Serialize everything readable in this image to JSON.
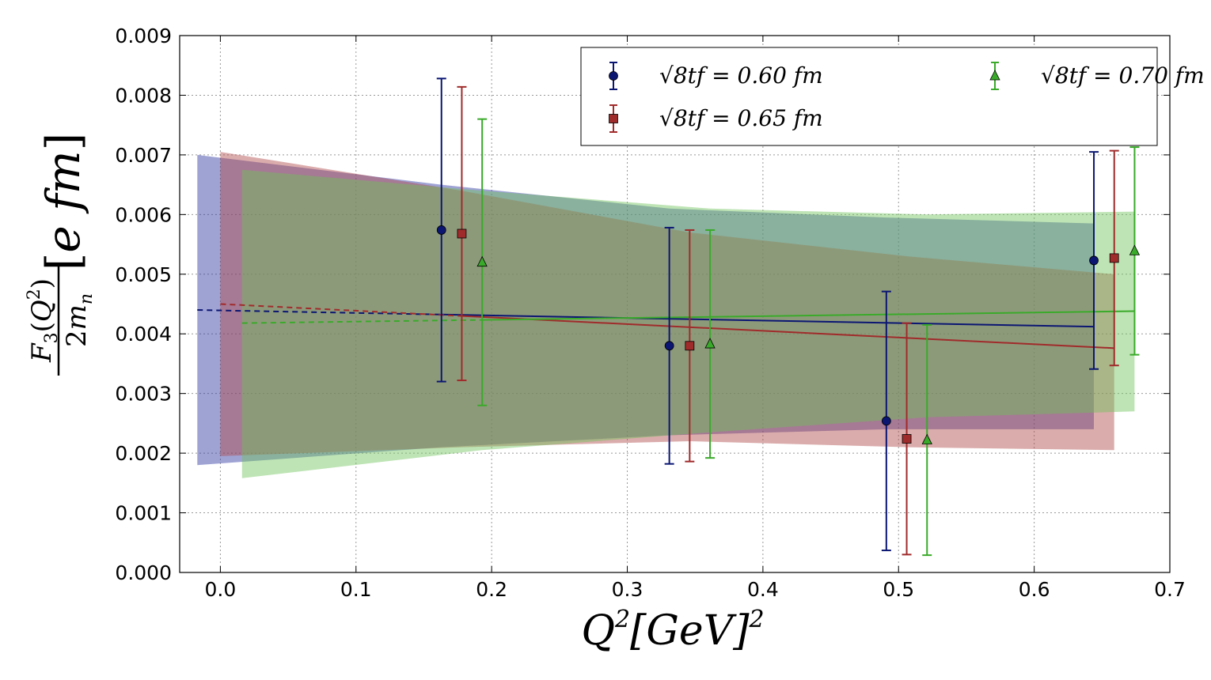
{
  "chart_data": {
    "type": "scatter",
    "title": "",
    "xlabel": "Q²[GeV]²",
    "ylabel": "F₃(Q²)/2mₙ [e fm]",
    "xlim": [
      -0.03,
      0.7
    ],
    "ylim": [
      0.0,
      0.009
    ],
    "grid": true,
    "legend_position": "top-right",
    "xticks": [
      "0.0",
      "0.1",
      "0.2",
      "0.3",
      "0.4",
      "0.5",
      "0.6",
      "0.7"
    ],
    "yticks": [
      "0.000",
      "0.001",
      "0.002",
      "0.003",
      "0.004",
      "0.005",
      "0.006",
      "0.007",
      "0.008",
      "0.009"
    ],
    "series": [
      {
        "name": "√8t_f = 0.60 fm",
        "legend_label": "√8tf = 0.60 fm",
        "marker": "circle",
        "color": "#0b1672",
        "band_color": "#2b33a0",
        "x": [
          0.163,
          0.331,
          0.491,
          0.644
        ],
        "y": [
          0.00574,
          0.0038,
          0.00254,
          0.00523
        ],
        "err": [
          0.00254,
          0.00198,
          0.00217,
          0.00182
        ],
        "fit": {
          "x_start": -0.017,
          "x_end": 0.644,
          "y_start": 0.0044,
          "y_end": 0.00412,
          "dashed_until": 0.163
        },
        "band": {
          "upper": [
            [
              -0.017,
              0.007
            ],
            [
              0.163,
              0.0065
            ],
            [
              0.331,
              0.0061
            ],
            [
              0.491,
              0.00595
            ],
            [
              0.644,
              0.00585
            ]
          ],
          "lower": [
            [
              -0.017,
              0.0018
            ],
            [
              0.163,
              0.0021
            ],
            [
              0.331,
              0.0023
            ],
            [
              0.491,
              0.0024
            ],
            [
              0.644,
              0.0024
            ]
          ]
        }
      },
      {
        "name": "√8t_f = 0.65 fm",
        "legend_label": "√8tf = 0.65 fm",
        "marker": "square",
        "color": "#a02b2b",
        "band_color": "#b04848",
        "x": [
          0.178,
          0.346,
          0.506,
          0.659
        ],
        "y": [
          0.00568,
          0.0038,
          0.00224,
          0.00527
        ],
        "err": [
          0.00246,
          0.00194,
          0.00194,
          0.0018
        ],
        "fit": {
          "x_start": 0.0,
          "x_end": 0.659,
          "y_start": 0.0045,
          "y_end": 0.00376,
          "dashed_until": 0.178
        },
        "band": {
          "upper": [
            [
              0.0,
              0.00705
            ],
            [
              0.178,
              0.0064
            ],
            [
              0.346,
              0.0057
            ],
            [
              0.506,
              0.0053
            ],
            [
              0.659,
              0.005
            ]
          ],
          "lower": [
            [
              0.0,
              0.00195
            ],
            [
              0.178,
              0.0021
            ],
            [
              0.346,
              0.0022
            ],
            [
              0.506,
              0.0021
            ],
            [
              0.659,
              0.00205
            ]
          ]
        }
      },
      {
        "name": "√8t_f = 0.70 fm",
        "legend_label": "√8tf = 0.70 fm",
        "marker": "triangle",
        "color": "#3aaa2a",
        "band_color": "#6ec45a",
        "x": [
          0.193,
          0.361,
          0.521,
          0.674
        ],
        "y": [
          0.0052,
          0.00383,
          0.00222,
          0.00539
        ],
        "err": [
          0.0024,
          0.00191,
          0.00193,
          0.00174
        ],
        "fit": {
          "x_start": 0.016,
          "x_end": 0.674,
          "y_start": 0.00418,
          "y_end": 0.00438,
          "dashed_until": 0.193
        },
        "band": {
          "upper": [
            [
              0.016,
              0.00675
            ],
            [
              0.193,
              0.0064
            ],
            [
              0.361,
              0.0061
            ],
            [
              0.521,
              0.006
            ],
            [
              0.674,
              0.00605
            ]
          ],
          "lower": [
            [
              0.016,
              0.00158
            ],
            [
              0.193,
              0.00205
            ],
            [
              0.361,
              0.00235
            ],
            [
              0.521,
              0.0026
            ],
            [
              0.674,
              0.0027
            ]
          ]
        }
      }
    ]
  }
}
